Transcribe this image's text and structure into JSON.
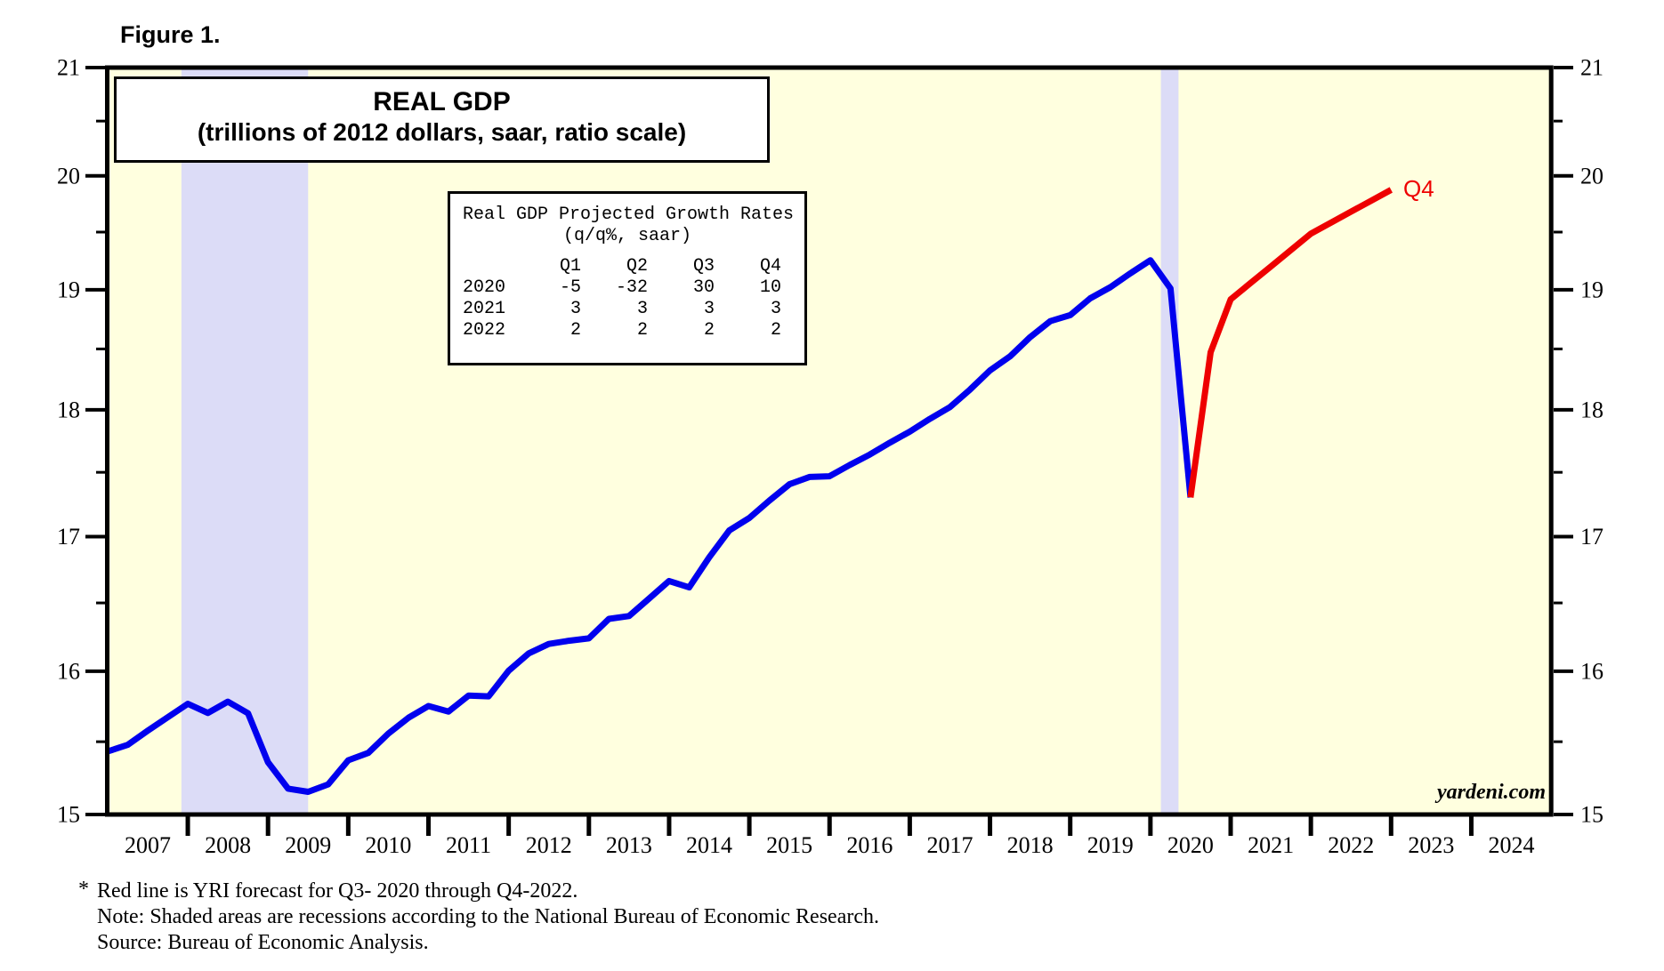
{
  "figure_label": "Figure 1.",
  "chart": {
    "title": "REAL GDP",
    "subtitle": "(trillions of 2012 dollars, saar, ratio scale)",
    "watermark": "yardeni.com",
    "end_label": "Q4"
  },
  "growth_table": {
    "title": "Real GDP Projected Growth Rates",
    "subtitle": "(q/q%, saar)",
    "columns": [
      "Q1",
      "Q2",
      "Q3",
      "Q4"
    ],
    "rows": [
      {
        "year": "2020",
        "values": [
          "-5",
          "-32",
          "30",
          "10"
        ]
      },
      {
        "year": "2021",
        "values": [
          "3",
          "3",
          "3",
          "3"
        ]
      },
      {
        "year": "2022",
        "values": [
          "2",
          "2",
          "2",
          "2"
        ]
      }
    ]
  },
  "footnotes": {
    "marker": "*",
    "lines": [
      "Red line is YRI forecast for Q3- 2020 through Q4-2022.",
      "Note: Shaded areas are recessions according to the National Bureau of Economic Research.",
      "Source: Bureau of Economic Analysis."
    ]
  },
  "chart_data": {
    "type": "line",
    "title": "REAL GDP",
    "subtitle": "(trillions of 2012 dollars, saar, ratio scale)",
    "ylabel": "trillions of 2012 dollars",
    "y_axis": {
      "scale": "log",
      "min": 15,
      "max": 21,
      "major_ticks": [
        15,
        16,
        17,
        18,
        19,
        20,
        21
      ],
      "minor_ticks": [
        15.5,
        16.5,
        17.5,
        18.5,
        19.5,
        20.5
      ]
    },
    "x_axis": {
      "min": 2007,
      "max": 2025,
      "year_labels": [
        2007,
        2008,
        2009,
        2010,
        2011,
        2012,
        2013,
        2014,
        2015,
        2016,
        2017,
        2018,
        2019,
        2020,
        2021,
        2022,
        2023,
        2024
      ]
    },
    "recession_bands": [
      {
        "from": 2007.92,
        "to": 2009.5
      },
      {
        "from": 2020.13,
        "to": 2020.35
      }
    ],
    "colors": {
      "plot_bg": "#ffffdf",
      "recession_band": "#dcdcf7",
      "actual_line": "#0000ee",
      "forecast_line": "#ee0000",
      "axis": "#000000"
    },
    "series": [
      {
        "name": "Real GDP actual",
        "color": "#0000ee",
        "points": [
          [
            2007.0,
            15.432
          ],
          [
            2007.25,
            15.478
          ],
          [
            2007.5,
            15.577
          ],
          [
            2007.75,
            15.672
          ],
          [
            2008.0,
            15.767
          ],
          [
            2008.25,
            15.702
          ],
          [
            2008.5,
            15.782
          ],
          [
            2008.75,
            15.7
          ],
          [
            2009.0,
            15.357
          ],
          [
            2009.25,
            15.176
          ],
          [
            2009.5,
            15.154
          ],
          [
            2009.75,
            15.205
          ],
          [
            2010.0,
            15.371
          ],
          [
            2010.25,
            15.422
          ],
          [
            2010.5,
            15.557
          ],
          [
            2010.75,
            15.668
          ],
          [
            2011.0,
            15.751
          ],
          [
            2011.25,
            15.712
          ],
          [
            2011.5,
            15.825
          ],
          [
            2011.75,
            15.82
          ],
          [
            2012.0,
            16.004
          ],
          [
            2012.25,
            16.129
          ],
          [
            2012.5,
            16.198
          ],
          [
            2012.75,
            16.221
          ],
          [
            2013.0,
            16.239
          ],
          [
            2013.25,
            16.382
          ],
          [
            2013.5,
            16.403
          ],
          [
            2013.75,
            16.532
          ],
          [
            2014.0,
            16.664
          ],
          [
            2014.25,
            16.616
          ],
          [
            2014.5,
            16.842
          ],
          [
            2014.75,
            17.048
          ],
          [
            2015.0,
            17.144
          ],
          [
            2015.25,
            17.278
          ],
          [
            2015.5,
            17.406
          ],
          [
            2015.75,
            17.463
          ],
          [
            2016.0,
            17.469
          ],
          [
            2016.25,
            17.557
          ],
          [
            2016.5,
            17.64
          ],
          [
            2016.75,
            17.735
          ],
          [
            2017.0,
            17.824
          ],
          [
            2017.25,
            17.926
          ],
          [
            2017.5,
            18.021
          ],
          [
            2017.75,
            18.164
          ],
          [
            2018.0,
            18.322
          ],
          [
            2018.25,
            18.438
          ],
          [
            2018.5,
            18.598
          ],
          [
            2018.75,
            18.733
          ],
          [
            2019.0,
            18.784
          ],
          [
            2019.25,
            18.927
          ],
          [
            2019.5,
            19.022
          ],
          [
            2019.75,
            19.141
          ],
          [
            2020.0,
            19.254
          ],
          [
            2020.25,
            19.011
          ],
          [
            2020.5,
            17.303
          ]
        ]
      },
      {
        "name": "YRI forecast",
        "color": "#ee0000",
        "points": [
          [
            2020.5,
            17.303
          ],
          [
            2020.75,
            18.473
          ],
          [
            2021.0,
            18.918
          ],
          [
            2021.25,
            19.058
          ],
          [
            2021.5,
            19.199
          ],
          [
            2021.75,
            19.342
          ],
          [
            2022.0,
            19.486
          ],
          [
            2022.25,
            19.583
          ],
          [
            2022.5,
            19.68
          ],
          [
            2022.75,
            19.777
          ],
          [
            2023.0,
            19.875
          ]
        ]
      }
    ]
  }
}
